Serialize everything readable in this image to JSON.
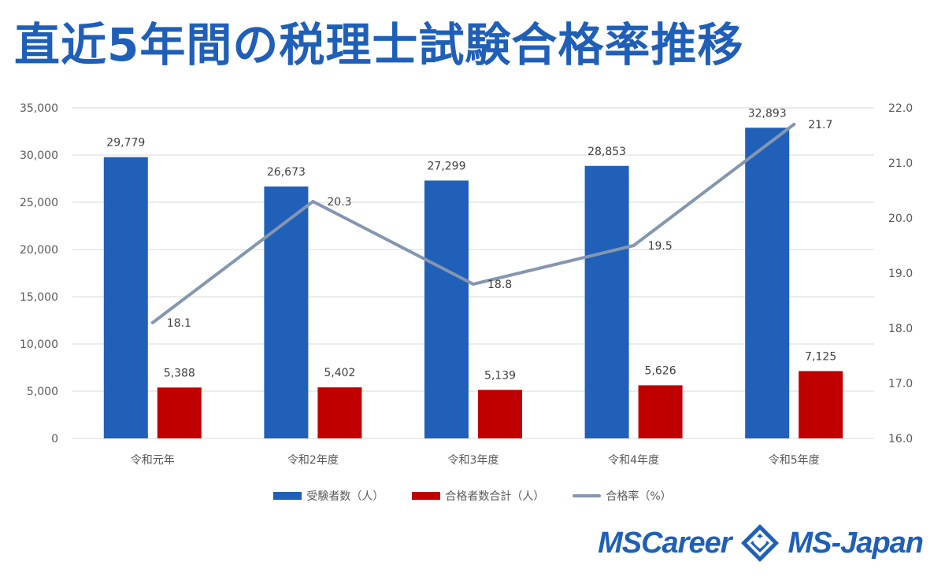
{
  "title": "直近5年間の税理士試験合格率推移",
  "colors": {
    "title": "#1f5fb8",
    "examinees": "#2160b8",
    "passers": "#c00000",
    "rate": "#8496b0",
    "grid": "#d9d9d9"
  },
  "chart_data": {
    "type": "bar",
    "categories": [
      "令和元年",
      "令和2年度",
      "令和3年度",
      "令和4年度",
      "令和5年度"
    ],
    "series": [
      {
        "name": "受験者数（人）",
        "type": "bar",
        "axis": "left",
        "values": [
          29779,
          26673,
          27299,
          28853,
          32893
        ],
        "labels": [
          "29,779",
          "26,673",
          "27,299",
          "28,853",
          "32,893"
        ]
      },
      {
        "name": "合格者数合計（人）",
        "type": "bar",
        "axis": "left",
        "values": [
          5388,
          5402,
          5139,
          5626,
          7125
        ],
        "labels": [
          "5,388",
          "5,402",
          "5,139",
          "5,626",
          "7,125"
        ]
      },
      {
        "name": "合格率（%）",
        "type": "line",
        "axis": "right",
        "values": [
          18.1,
          20.3,
          18.8,
          19.5,
          21.7
        ],
        "labels": [
          "18.1",
          "20.3",
          "18.8",
          "19.5",
          "21.7"
        ]
      }
    ],
    "y_left": {
      "min": 0,
      "max": 35000,
      "step": 5000,
      "tick_labels": [
        "0",
        "5,000",
        "10,000",
        "15,000",
        "20,000",
        "25,000",
        "30,000",
        "35,000"
      ]
    },
    "y_right": {
      "min": 16.0,
      "max": 22.0,
      "step": 1.0,
      "tick_labels": [
        "16.0",
        "17.0",
        "18.0",
        "19.0",
        "20.0",
        "21.0",
        "22.0"
      ]
    },
    "grid": true,
    "legend": "bottom"
  },
  "logo": {
    "left_text": "MSCareer",
    "right_text": "MS-Japan"
  }
}
